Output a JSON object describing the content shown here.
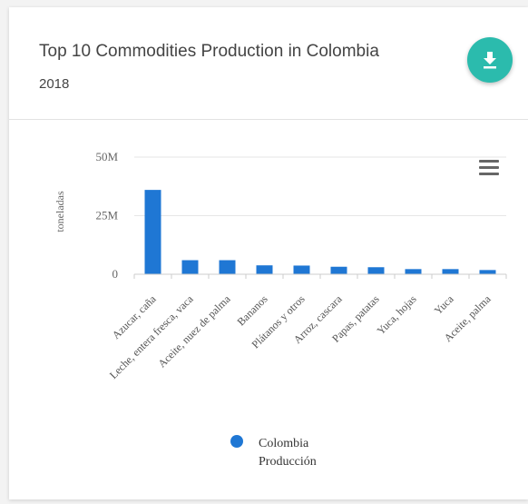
{
  "card": {
    "title": "Top 10 Commodities Production in Colombia",
    "subtitle": "2018",
    "download_icon": "download-icon",
    "accent_color": "#2bbbad"
  },
  "chart_menu_icon": "hamburger-menu-icon",
  "chart_data": {
    "type": "bar",
    "categories": [
      "Azucar, caña",
      "Leche, entera fresca, vaca",
      "Aceite, nuez de palma",
      "Bananos",
      "Plátanos y otros",
      "Arroz, cascara",
      "Papas, patatas",
      "Yuca, hojas",
      "Yuca",
      "Aceite, palma"
    ],
    "series": [
      {
        "name": "Colombia Producción",
        "color": "#1f77d4",
        "values": [
          36000000,
          6000000,
          6000000,
          3800000,
          3700000,
          3200000,
          3000000,
          2200000,
          2200000,
          1800000
        ]
      }
    ],
    "ylabel": "toneladas",
    "ylim": [
      0,
      50000000
    ],
    "yticks": [
      0,
      25000000,
      50000000
    ],
    "ytick_labels": [
      "0",
      "25M",
      "50M"
    ],
    "grid": true,
    "legend": {
      "position": "bottom",
      "line1": "Colombia",
      "line2": "Producción"
    }
  }
}
